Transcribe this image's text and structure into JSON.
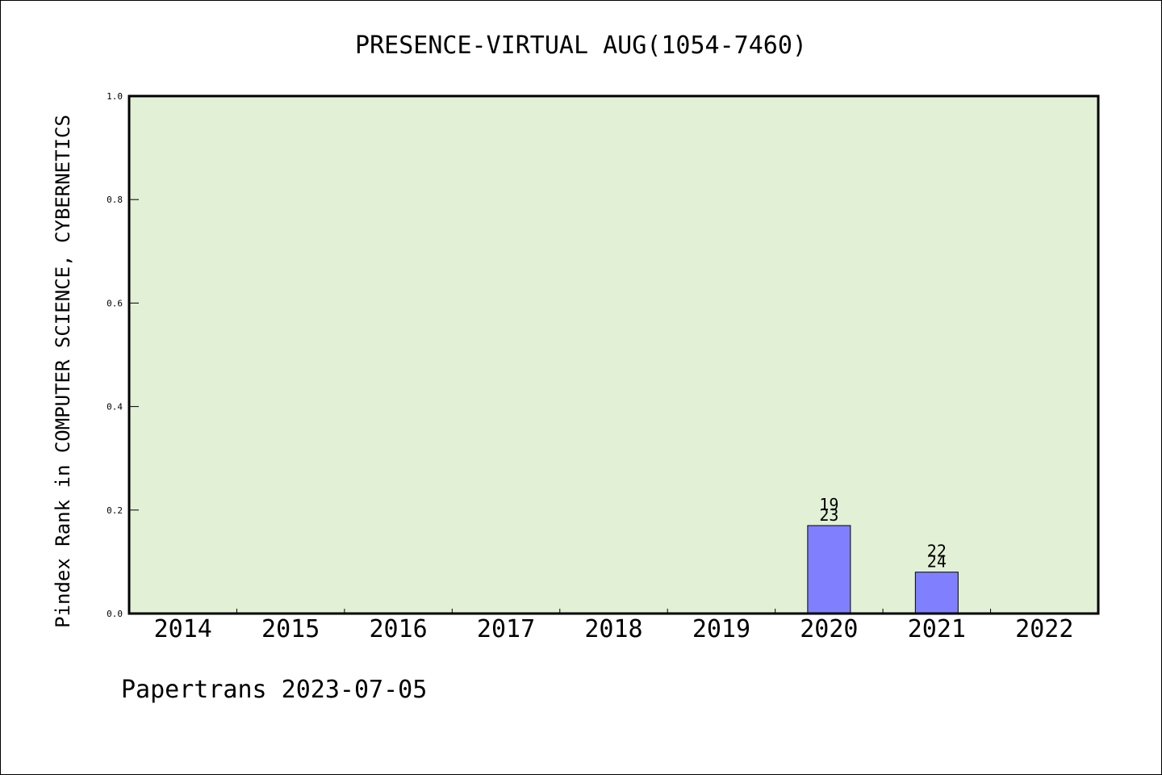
{
  "chart_data": {
    "type": "bar",
    "title": "PRESENCE-VIRTUAL AUG(1054-7460)",
    "ylabel": "Pindex Rank in COMPUTER SCIENCE, CYBERNETICS",
    "xlabel": "",
    "categories": [
      "2014",
      "2015",
      "2016",
      "2017",
      "2018",
      "2019",
      "2020",
      "2021",
      "2022"
    ],
    "values": [
      0,
      0,
      0,
      0,
      0,
      0,
      0.17,
      0.08,
      0
    ],
    "bar_labels": [
      null,
      null,
      null,
      null,
      null,
      null,
      {
        "top": "19",
        "bottom": "23"
      },
      {
        "top": "22",
        "bottom": "24"
      },
      null
    ],
    "ylim": [
      0,
      1.0
    ],
    "yticks": [
      "0.0",
      "0.2",
      "0.4",
      "0.6",
      "0.8",
      "1.0"
    ],
    "grid": false,
    "plot_background": "#e2f0d6",
    "bar_color": "#8080ff",
    "footer": "Papertrans 2023-07-05"
  }
}
